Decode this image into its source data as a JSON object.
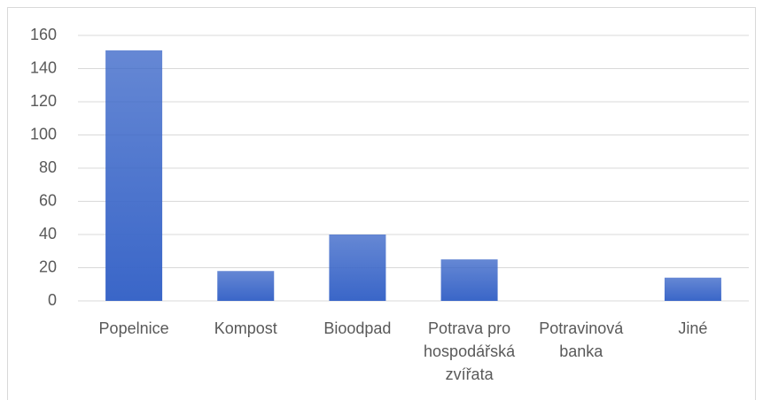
{
  "chart_data": {
    "type": "bar",
    "categories": [
      "Popelnice",
      "Kompost",
      "Bioodpad",
      "Potrava pro hospodářská zvířata",
      "Potravinová banka",
      "Jiné"
    ],
    "values": [
      151,
      18,
      40,
      25,
      0,
      14
    ],
    "color": "#3a66c8",
    "ylim": [
      0,
      160
    ],
    "yticks": [
      0,
      20,
      40,
      60,
      80,
      100,
      120,
      140,
      160
    ],
    "grid": true
  }
}
